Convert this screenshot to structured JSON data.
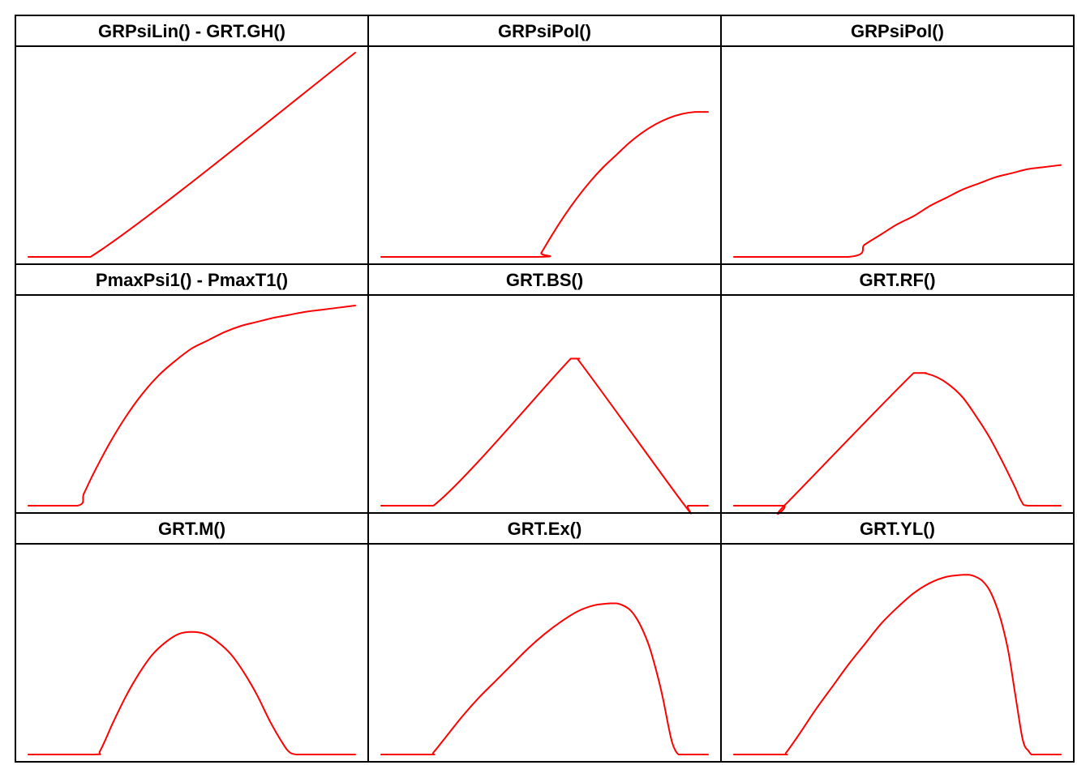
{
  "colors": {
    "curve": "#ff0000",
    "frame": "#000000",
    "background": "#ffffff"
  },
  "chart_data": [
    {
      "type": "line",
      "title": "GRPsiLin() - GRT.GH()",
      "xlabel": "",
      "ylabel": "",
      "x": [
        0,
        0.19,
        1.0
      ],
      "series": [
        {
          "values": [
            0,
            0,
            1.0
          ]
        }
      ],
      "xlim": [
        0,
        1
      ],
      "ylim": [
        0,
        1
      ]
    },
    {
      "type": "line",
      "title": "GRPsiPol()",
      "xlabel": "",
      "ylabel": "",
      "x": [
        0,
        0.48,
        0.49,
        0.52,
        0.56,
        0.6,
        0.64,
        0.68,
        0.72,
        0.76,
        0.8,
        0.84,
        0.88,
        0.92,
        0.96,
        1.0
      ],
      "series": [
        {
          "values": [
            0,
            0,
            0.02,
            0.1,
            0.2,
            0.29,
            0.37,
            0.44,
            0.5,
            0.56,
            0.61,
            0.65,
            0.68,
            0.7,
            0.71,
            0.71
          ]
        }
      ],
      "xlim": [
        0,
        1
      ],
      "ylim": [
        0,
        1
      ]
    },
    {
      "type": "line",
      "title": "GRPsiPol()",
      "xlabel": "",
      "ylabel": "",
      "x": [
        0,
        0.35,
        0.4,
        0.45,
        0.5,
        0.55,
        0.6,
        0.65,
        0.7,
        0.75,
        0.8,
        0.85,
        0.9,
        0.95,
        1.0
      ],
      "series": [
        {
          "values": [
            0,
            0,
            0.06,
            0.11,
            0.16,
            0.2,
            0.25,
            0.29,
            0.33,
            0.36,
            0.39,
            0.41,
            0.43,
            0.44,
            0.45
          ]
        }
      ],
      "xlim": [
        0,
        1
      ],
      "ylim": [
        0,
        1
      ]
    },
    {
      "type": "line",
      "title": "PmaxPsi1() - PmaxT1()",
      "xlabel": "",
      "ylabel": "",
      "x": [
        0,
        0.15,
        0.17,
        0.2,
        0.25,
        0.3,
        0.35,
        0.4,
        0.45,
        0.5,
        0.55,
        0.6,
        0.65,
        0.7,
        0.75,
        0.8,
        0.85,
        0.9,
        0.95,
        1.0
      ],
      "series": [
        {
          "values": [
            0,
            0,
            0.06,
            0.16,
            0.31,
            0.44,
            0.55,
            0.64,
            0.71,
            0.77,
            0.81,
            0.85,
            0.88,
            0.9,
            0.92,
            0.935,
            0.95,
            0.96,
            0.97,
            0.98
          ]
        }
      ],
      "xlim": [
        0,
        1
      ],
      "ylim": [
        0,
        1
      ]
    },
    {
      "type": "line",
      "title": "GRT.BS()",
      "xlabel": "",
      "ylabel": "",
      "x": [
        0,
        0.16,
        0.58,
        0.6,
        0.92,
        0.94,
        1.0
      ],
      "series": [
        {
          "values": [
            0,
            0,
            0.72,
            0.72,
            0.02,
            0,
            0
          ]
        }
      ],
      "xlim": [
        0,
        1
      ],
      "ylim": [
        0,
        1
      ]
    },
    {
      "type": "line",
      "title": "GRT.RF()",
      "xlabel": "",
      "ylabel": "",
      "x": [
        0,
        0.15,
        0.16,
        0.55,
        0.58,
        0.62,
        0.66,
        0.7,
        0.74,
        0.78,
        0.82,
        0.86,
        0.88,
        0.9,
        1.0
      ],
      "series": [
        {
          "values": [
            0,
            0,
            0.01,
            0.65,
            0.65,
            0.63,
            0.59,
            0.53,
            0.44,
            0.34,
            0.22,
            0.09,
            0.02,
            0,
            0
          ]
        }
      ],
      "xlim": [
        0,
        1
      ],
      "ylim": [
        0,
        1
      ]
    },
    {
      "type": "line",
      "title": "GRT.M()",
      "xlabel": "",
      "ylabel": "",
      "x": [
        0,
        0.2,
        0.22,
        0.26,
        0.3,
        0.34,
        0.38,
        0.42,
        0.46,
        0.5,
        0.54,
        0.58,
        0.62,
        0.66,
        0.7,
        0.74,
        0.78,
        0.8,
        0.82,
        0.84,
        1.0
      ],
      "series": [
        {
          "values": [
            0,
            0,
            0.02,
            0.16,
            0.29,
            0.4,
            0.49,
            0.55,
            0.59,
            0.6,
            0.59,
            0.55,
            0.49,
            0.4,
            0.29,
            0.16,
            0.05,
            0.01,
            0,
            0,
            0
          ]
        }
      ],
      "xlim": [
        0,
        1
      ],
      "ylim": [
        0,
        1
      ]
    },
    {
      "type": "line",
      "title": "GRT.Ex()",
      "xlabel": "",
      "ylabel": "",
      "x": [
        0,
        0.15,
        0.16,
        0.2,
        0.25,
        0.3,
        0.35,
        0.4,
        0.45,
        0.5,
        0.55,
        0.6,
        0.65,
        0.7,
        0.72,
        0.74,
        0.76,
        0.78,
        0.8,
        0.82,
        0.84,
        0.86,
        0.88,
        0.89,
        0.9,
        0.91,
        0.92,
        1.0
      ],
      "series": [
        {
          "values": [
            0,
            0,
            0.01,
            0.09,
            0.19,
            0.28,
            0.36,
            0.44,
            0.52,
            0.59,
            0.65,
            0.7,
            0.73,
            0.74,
            0.74,
            0.73,
            0.71,
            0.67,
            0.61,
            0.53,
            0.42,
            0.29,
            0.13,
            0.06,
            0.02,
            0,
            0,
            0
          ]
        }
      ],
      "xlim": [
        0,
        1
      ],
      "ylim": [
        0,
        1
      ]
    },
    {
      "type": "line",
      "title": "GRT.YL()",
      "xlabel": "",
      "ylabel": "",
      "x": [
        0,
        0.15,
        0.16,
        0.2,
        0.25,
        0.3,
        0.35,
        0.4,
        0.45,
        0.5,
        0.55,
        0.6,
        0.65,
        0.7,
        0.72,
        0.74,
        0.76,
        0.78,
        0.8,
        0.82,
        0.84,
        0.86,
        0.88,
        0.89,
        0.9,
        0.91,
        0.92,
        1.0
      ],
      "series": [
        {
          "values": [
            0,
            0,
            0.01,
            0.1,
            0.22,
            0.33,
            0.44,
            0.54,
            0.64,
            0.72,
            0.79,
            0.84,
            0.87,
            0.88,
            0.88,
            0.87,
            0.85,
            0.81,
            0.74,
            0.64,
            0.5,
            0.3,
            0.1,
            0.04,
            0.02,
            0,
            0,
            0
          ]
        }
      ],
      "xlim": [
        0,
        1
      ],
      "ylim": [
        0,
        1
      ]
    }
  ]
}
